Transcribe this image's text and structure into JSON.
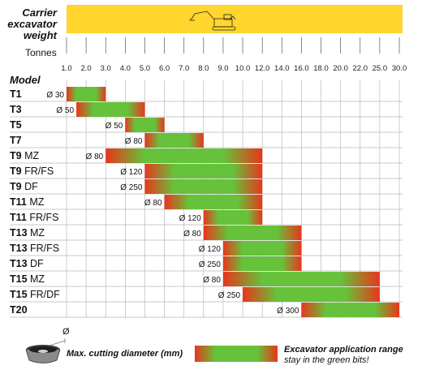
{
  "header": {
    "title_lines": [
      "Carrier",
      "excavator",
      "weight"
    ],
    "unit_label": "Tonnes",
    "model_header": "Model",
    "band_color": "#ffd52e"
  },
  "legend": {
    "diameter_symbol": "Ø",
    "diameter_label": "Max. cutting diameter (mm)",
    "range_label": "Excavator application range",
    "range_sublabel": "stay in the green bits!"
  },
  "colors": {
    "range_center": "#66c23a",
    "range_edge": "#e8361c",
    "grid": "#b9b9b9"
  },
  "chart_data": {
    "type": "bar",
    "title": "Carrier excavator weight",
    "xlabel": "Tonnes",
    "ylabel": "Model",
    "x_ticks": [
      1.0,
      2.0,
      3.0,
      4.0,
      5.0,
      6.0,
      7.0,
      8.0,
      9.0,
      10.0,
      12.0,
      14.0,
      16.0,
      18.0,
      20.0,
      22.0,
      25.0,
      30.0
    ],
    "x_tick_labels": [
      "1.0",
      "2.0",
      "3.0",
      "4.0",
      "5.0",
      "6.0",
      "7.0",
      "8.0",
      "9.0",
      "10.0",
      "12.0",
      "14.0",
      "16.0",
      "18.0",
      "20.0",
      "22.0",
      "25.0",
      "30.0"
    ],
    "rows": [
      {
        "model": "T1",
        "variant": "",
        "diameter": "Ø 30",
        "from": 1.0,
        "to": 3.0
      },
      {
        "model": "T3",
        "variant": "",
        "diameter": "Ø 50",
        "from": 1.5,
        "to": 5.0
      },
      {
        "model": "T5",
        "variant": "",
        "diameter": "Ø 50",
        "from": 4.0,
        "to": 6.0
      },
      {
        "model": "T7",
        "variant": "",
        "diameter": "Ø 80",
        "from": 5.0,
        "to": 8.0
      },
      {
        "model": "T9",
        "variant": "MZ",
        "diameter": "Ø 80",
        "from": 3.0,
        "to": 12.0
      },
      {
        "model": "T9",
        "variant": "FR/FS",
        "diameter": "Ø 120",
        "from": 5.0,
        "to": 12.0
      },
      {
        "model": "T9",
        "variant": "DF",
        "diameter": "Ø 250",
        "from": 5.0,
        "to": 12.0
      },
      {
        "model": "T11",
        "variant": "MZ",
        "diameter": "Ø 80",
        "from": 6.0,
        "to": 12.0
      },
      {
        "model": "T11",
        "variant": "FR/FS",
        "diameter": "Ø 120",
        "from": 8.0,
        "to": 12.0
      },
      {
        "model": "T13",
        "variant": "MZ",
        "diameter": "Ø 80",
        "from": 8.0,
        "to": 16.0
      },
      {
        "model": "T13",
        "variant": "FR/FS",
        "diameter": "Ø 120",
        "from": 9.0,
        "to": 16.0
      },
      {
        "model": "T13",
        "variant": "DF",
        "diameter": "Ø 250",
        "from": 9.0,
        "to": 16.0
      },
      {
        "model": "T15",
        "variant": "MZ",
        "diameter": "Ø 80",
        "from": 9.0,
        "to": 25.0
      },
      {
        "model": "T15",
        "variant": "FR/DF",
        "diameter": "Ø 250",
        "from": 10.0,
        "to": 25.0
      },
      {
        "model": "T20",
        "variant": "",
        "diameter": "Ø 300",
        "from": 16.0,
        "to": 30.0
      }
    ]
  }
}
